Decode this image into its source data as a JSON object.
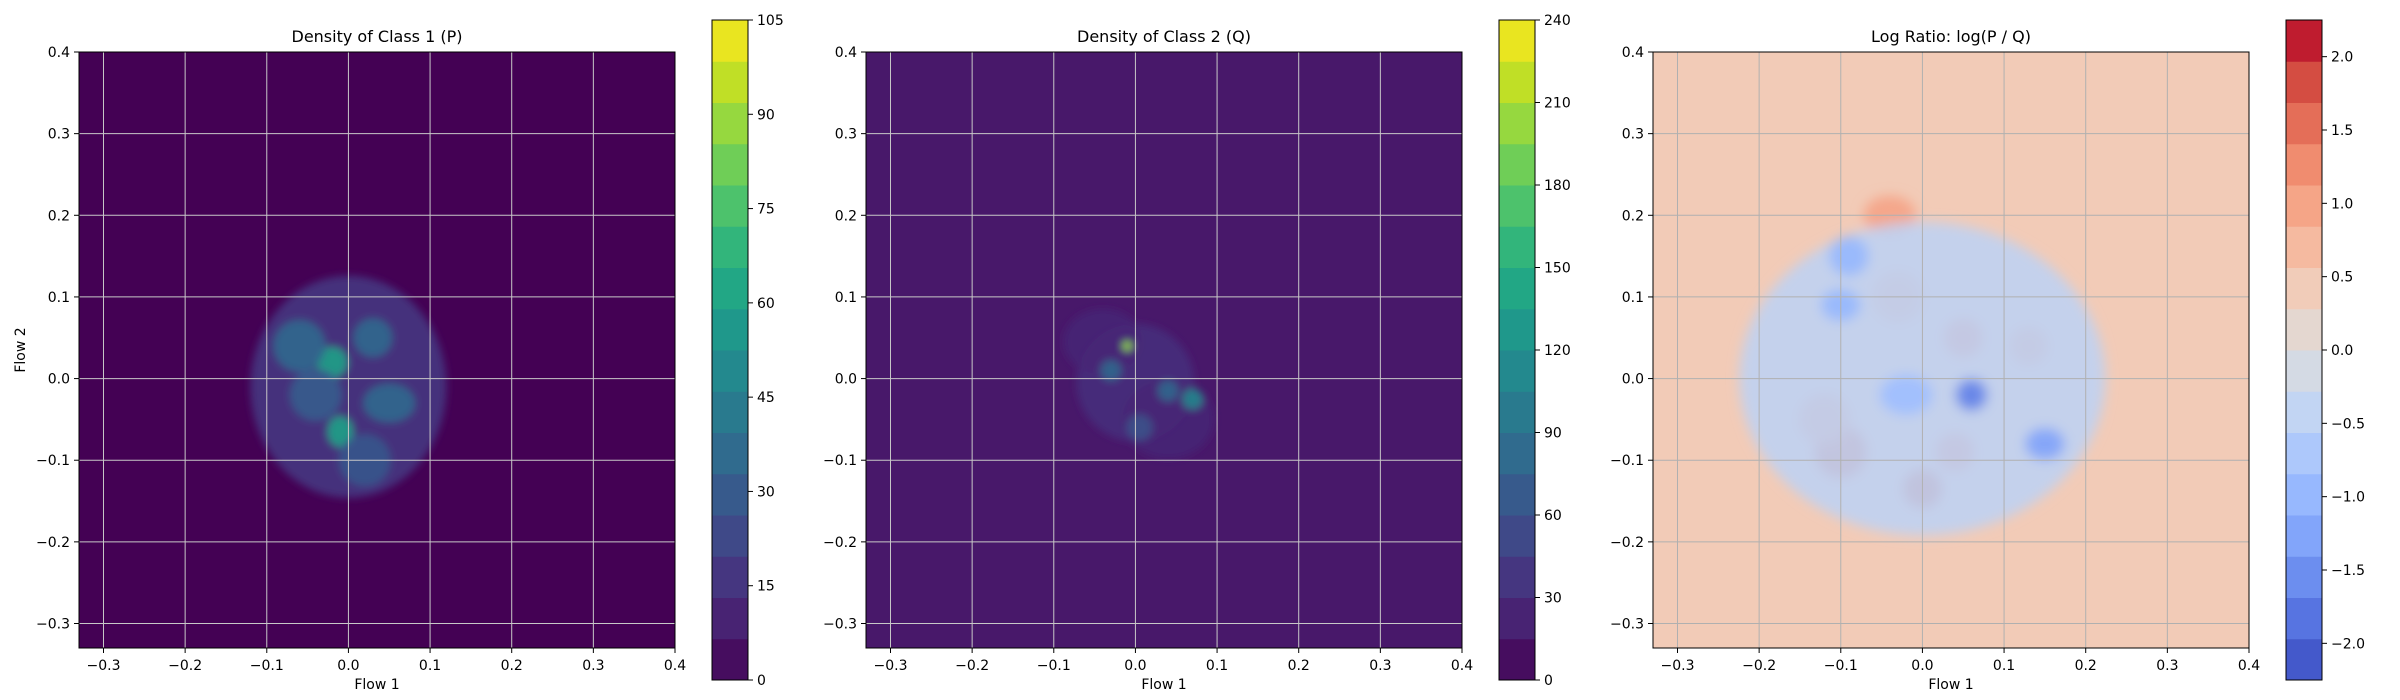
{
  "chart_data": [
    {
      "type": "heatmap",
      "title": "Density of Class 1 (P)",
      "xlabel": "Flow 1",
      "ylabel": "Flow 2",
      "xlim": [
        -0.33,
        0.4
      ],
      "ylim": [
        -0.33,
        0.4
      ],
      "xticks": [
        -0.3,
        -0.2,
        -0.1,
        0.0,
        0.1,
        0.2,
        0.3,
        0.4
      ],
      "yticks": [
        -0.3,
        -0.2,
        -0.1,
        0.0,
        0.1,
        0.2,
        0.3,
        0.4
      ],
      "grid": true,
      "colormap": "viridis",
      "colorbar": {
        "min": 0,
        "max": 105,
        "ticks": [
          0,
          15,
          30,
          45,
          60,
          75,
          90,
          105
        ]
      },
      "background_color": "#440154",
      "blobs": [
        {
          "x": 0.0,
          "y": -0.01,
          "sx": 0.075,
          "sy": 0.085,
          "value": 18
        },
        {
          "x": -0.02,
          "y": 0.02,
          "sx": 0.012,
          "sy": 0.012,
          "value": 60
        },
        {
          "x": -0.01,
          "y": -0.065,
          "sx": 0.01,
          "sy": 0.012,
          "value": 60
        },
        {
          "x": -0.06,
          "y": 0.04,
          "sx": 0.02,
          "sy": 0.02,
          "value": 35
        },
        {
          "x": 0.03,
          "y": 0.05,
          "sx": 0.015,
          "sy": 0.015,
          "value": 35
        },
        {
          "x": 0.05,
          "y": -0.03,
          "sx": 0.02,
          "sy": 0.015,
          "value": 35
        },
        {
          "x": -0.04,
          "y": -0.02,
          "sx": 0.02,
          "sy": 0.02,
          "value": 30
        },
        {
          "x": 0.02,
          "y": -0.1,
          "sx": 0.02,
          "sy": 0.02,
          "value": 28
        }
      ]
    },
    {
      "type": "heatmap",
      "title": "Density of Class 2 (Q)",
      "xlabel": "Flow 1",
      "ylabel": "",
      "xlim": [
        -0.33,
        0.4
      ],
      "ylim": [
        -0.33,
        0.4
      ],
      "xticks": [
        -0.3,
        -0.2,
        -0.1,
        0.0,
        0.1,
        0.2,
        0.3,
        0.4
      ],
      "yticks": [
        -0.3,
        -0.2,
        -0.1,
        0.0,
        0.1,
        0.2,
        0.3,
        0.4
      ],
      "grid": true,
      "colormap": "viridis",
      "colorbar": {
        "min": 0,
        "max": 240,
        "ticks": [
          0,
          30,
          60,
          90,
          120,
          150,
          180,
          210,
          240
        ]
      },
      "background_color": "#48186a",
      "blobs": [
        {
          "x": 0.0,
          "y": -0.005,
          "sx": 0.045,
          "sy": 0.045,
          "value": 30
        },
        {
          "x": 0.04,
          "y": -0.05,
          "sx": 0.035,
          "sy": 0.03,
          "value": 25
        },
        {
          "x": -0.04,
          "y": 0.045,
          "sx": 0.03,
          "sy": 0.025,
          "value": 25
        },
        {
          "x": -0.01,
          "y": 0.04,
          "sx": 0.004,
          "sy": 0.004,
          "value": 200
        },
        {
          "x": 0.07,
          "y": -0.025,
          "sx": 0.008,
          "sy": 0.008,
          "value": 110
        },
        {
          "x": -0.03,
          "y": 0.01,
          "sx": 0.008,
          "sy": 0.008,
          "value": 80
        },
        {
          "x": 0.04,
          "y": -0.015,
          "sx": 0.008,
          "sy": 0.008,
          "value": 80
        },
        {
          "x": 0.005,
          "y": -0.06,
          "sx": 0.01,
          "sy": 0.01,
          "value": 60
        }
      ]
    },
    {
      "type": "heatmap",
      "title": "Log Ratio: log(P / Q)",
      "xlabel": "Flow 1",
      "ylabel": "",
      "xlim": [
        -0.33,
        0.4
      ],
      "ylim": [
        -0.33,
        0.4
      ],
      "xticks": [
        -0.3,
        -0.2,
        -0.1,
        0.0,
        0.1,
        0.2,
        0.3,
        0.4
      ],
      "yticks": [
        -0.3,
        -0.2,
        -0.1,
        0.0,
        0.1,
        0.2,
        0.3,
        0.4
      ],
      "grid": true,
      "colormap": "coolwarm",
      "colorbar": {
        "min": -2.25,
        "max": 2.25,
        "ticks": [
          -2.0,
          -1.5,
          -1.0,
          -0.5,
          0.0,
          0.5,
          1.0,
          1.5,
          2.0
        ],
        "tick_labels": [
          "−2.0",
          "−1.5",
          "−1.0",
          "−0.5",
          "0.0",
          "0.5",
          "1.0",
          "1.5",
          "2.0"
        ]
      },
      "background_value": 0.45,
      "blobs": [
        {
          "x": -0.1,
          "y": -0.09,
          "sx": 0.02,
          "sy": 0.02,
          "value": 1.5
        },
        {
          "x": 0.0,
          "y": -0.135,
          "sx": 0.015,
          "sy": 0.015,
          "value": 1.6
        },
        {
          "x": -0.04,
          "y": 0.2,
          "sx": 0.02,
          "sy": 0.015,
          "value": 1.0
        },
        {
          "x": 0.13,
          "y": 0.04,
          "sx": 0.015,
          "sy": 0.015,
          "value": 1.0
        },
        {
          "x": 0.05,
          "y": 0.05,
          "sx": 0.015,
          "sy": 0.015,
          "value": 1.2
        },
        {
          "x": -0.12,
          "y": -0.05,
          "sx": 0.02,
          "sy": 0.02,
          "value": 1.0
        },
        {
          "x": 0.04,
          "y": -0.09,
          "sx": 0.015,
          "sy": 0.015,
          "value": 1.2
        },
        {
          "x": -0.03,
          "y": 0.1,
          "sx": 0.02,
          "sy": 0.02,
          "value": 0.9
        },
        {
          "x": 0.0,
          "y": 0.0,
          "sx": 0.14,
          "sy": 0.12,
          "value": -0.5
        },
        {
          "x": -0.09,
          "y": 0.15,
          "sx": 0.015,
          "sy": 0.015,
          "value": -1.0
        },
        {
          "x": 0.06,
          "y": -0.02,
          "sx": 0.012,
          "sy": 0.012,
          "value": -1.7
        },
        {
          "x": 0.15,
          "y": -0.08,
          "sx": 0.015,
          "sy": 0.012,
          "value": -1.3
        },
        {
          "x": -0.1,
          "y": 0.09,
          "sx": 0.015,
          "sy": 0.012,
          "value": -1.0
        },
        {
          "x": -0.02,
          "y": -0.02,
          "sx": 0.02,
          "sy": 0.015,
          "value": -0.9
        }
      ]
    }
  ]
}
